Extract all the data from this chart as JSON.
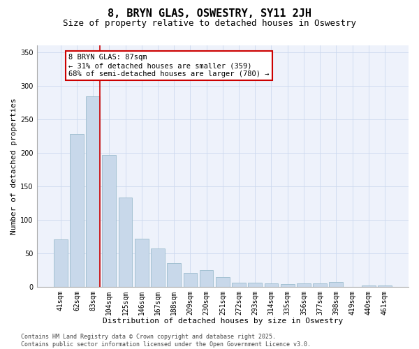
{
  "title": "8, BRYN GLAS, OSWESTRY, SY11 2JH",
  "subtitle": "Size of property relative to detached houses in Oswestry",
  "xlabel": "Distribution of detached houses by size in Oswestry",
  "ylabel": "Number of detached properties",
  "categories": [
    "41sqm",
    "62sqm",
    "83sqm",
    "104sqm",
    "125sqm",
    "146sqm",
    "167sqm",
    "188sqm",
    "209sqm",
    "230sqm",
    "251sqm",
    "272sqm",
    "293sqm",
    "314sqm",
    "335sqm",
    "356sqm",
    "377sqm",
    "398sqm",
    "419sqm",
    "440sqm",
    "461sqm"
  ],
  "values": [
    70,
    228,
    284,
    196,
    133,
    72,
    57,
    35,
    21,
    25,
    14,
    6,
    6,
    5,
    4,
    5,
    5,
    7,
    0,
    2,
    2
  ],
  "bar_color": "#c8d8ea",
  "bar_edge_color": "#9bbcce",
  "grid_color": "#ccd8ee",
  "background_color": "#ffffff",
  "plot_bg_color": "#eef2fb",
  "vline_x": 2.43,
  "vline_color": "#cc0000",
  "annotation_text": "8 BRYN GLAS: 87sqm\n← 31% of detached houses are smaller (359)\n68% of semi-detached houses are larger (780) →",
  "annotation_box_edgecolor": "#cc0000",
  "ylim": [
    0,
    360
  ],
  "yticks": [
    0,
    50,
    100,
    150,
    200,
    250,
    300,
    350
  ],
  "footer": "Contains HM Land Registry data © Crown copyright and database right 2025.\nContains public sector information licensed under the Open Government Licence v3.0.",
  "title_fontsize": 11,
  "subtitle_fontsize": 9,
  "label_fontsize": 8,
  "tick_fontsize": 7,
  "footer_fontsize": 6,
  "ann_fontsize": 7.5
}
